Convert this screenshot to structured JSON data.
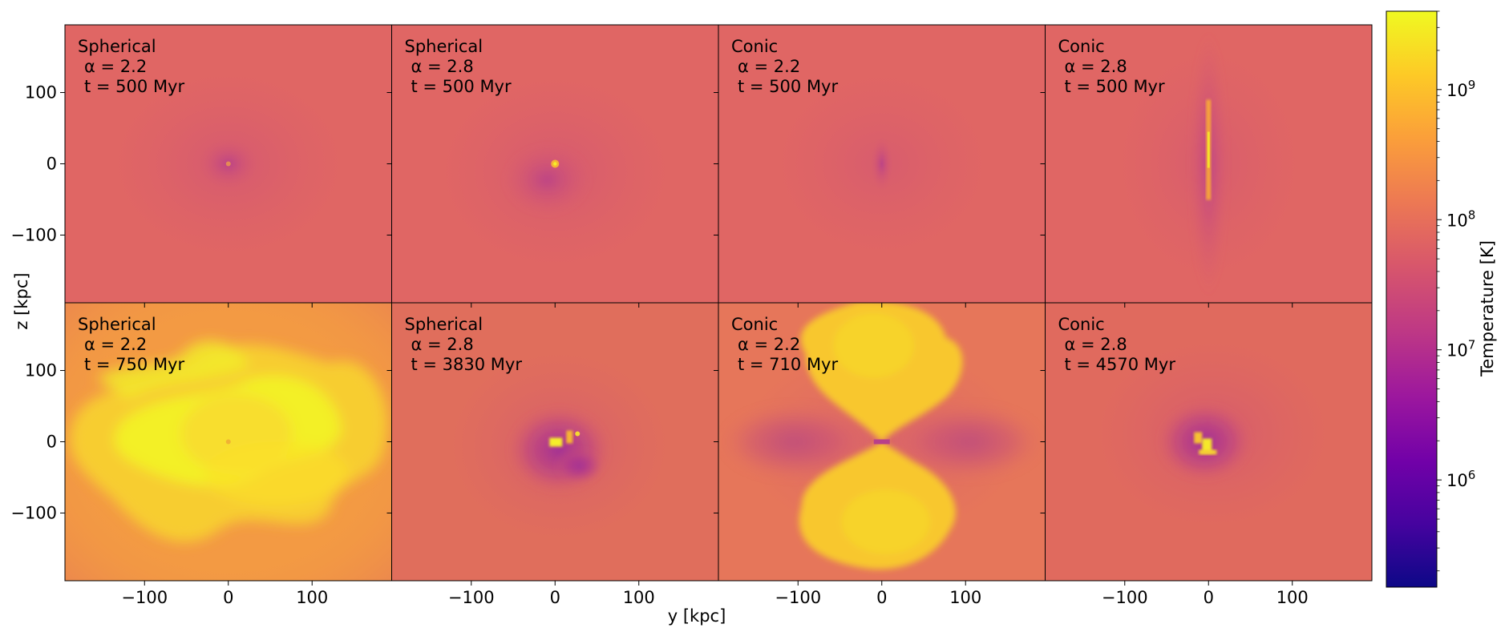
{
  "chart_data": {
    "type": "heatmap",
    "xlabel": "y [kpc]",
    "ylabel": "z [kpc]",
    "x_range": [
      -195,
      195
    ],
    "y_range": [
      -195,
      195
    ],
    "x_ticks": [
      -100,
      0,
      100
    ],
    "y_ticks": [
      -100,
      0,
      100
    ],
    "x_tick_labels": [
      "−100",
      "0",
      "100"
    ],
    "y_tick_labels": [
      "−100",
      "0",
      "100"
    ],
    "colormap": "plasma",
    "colorbar": {
      "label": "Temperature [K]",
      "scale": "log",
      "range": [
        150000,
        4000000000
      ],
      "ticks": [
        1000000,
        10000000,
        100000000,
        1000000000
      ],
      "tick_labels": [
        "10",
        "10",
        "10",
        "10"
      ],
      "tick_exponents": [
        "6",
        "7",
        "8",
        "9"
      ]
    },
    "panels": [
      {
        "geometry": "Spherical",
        "alpha_label": "α = 2.2",
        "time_label": "t = 500 Myr",
        "row": 0,
        "col": 0,
        "bg_color": "#e06664",
        "feature": "core-small"
      },
      {
        "geometry": "Spherical",
        "alpha_label": "α = 2.8",
        "time_label": "t = 500 Myr",
        "row": 0,
        "col": 1,
        "bg_color": "#e06664",
        "feature": "core-spot"
      },
      {
        "geometry": "Conic",
        "alpha_label": "α = 2.2",
        "time_label": "t = 500 Myr",
        "row": 0,
        "col": 2,
        "bg_color": "#e06664",
        "feature": "core-faint"
      },
      {
        "geometry": "Conic",
        "alpha_label": "α = 2.8",
        "time_label": "t = 500 Myr",
        "row": 0,
        "col": 3,
        "bg_color": "#e06664",
        "feature": "jet-vertical"
      },
      {
        "geometry": "Spherical",
        "alpha_label": "α = 2.2",
        "time_label": "t = 750 Myr",
        "row": 1,
        "col": 0,
        "bg_color": "#f39a43",
        "feature": "hot-bubble"
      },
      {
        "geometry": "Spherical",
        "alpha_label": "α = 2.8",
        "time_label": "t = 3830 Myr",
        "row": 1,
        "col": 1,
        "bg_color": "#e06e5c",
        "feature": "cool-core-hotspot"
      },
      {
        "geometry": "Conic",
        "alpha_label": "α = 2.2",
        "time_label": "t = 710 Myr",
        "row": 1,
        "col": 2,
        "bg_color": "#e6765a",
        "feature": "bipolar-lobes"
      },
      {
        "geometry": "Conic",
        "alpha_label": "α = 2.8",
        "time_label": "t = 4570 Myr",
        "row": 1,
        "col": 3,
        "bg_color": "#e06a5e",
        "feature": "cool-core-hotspot-small"
      }
    ]
  }
}
